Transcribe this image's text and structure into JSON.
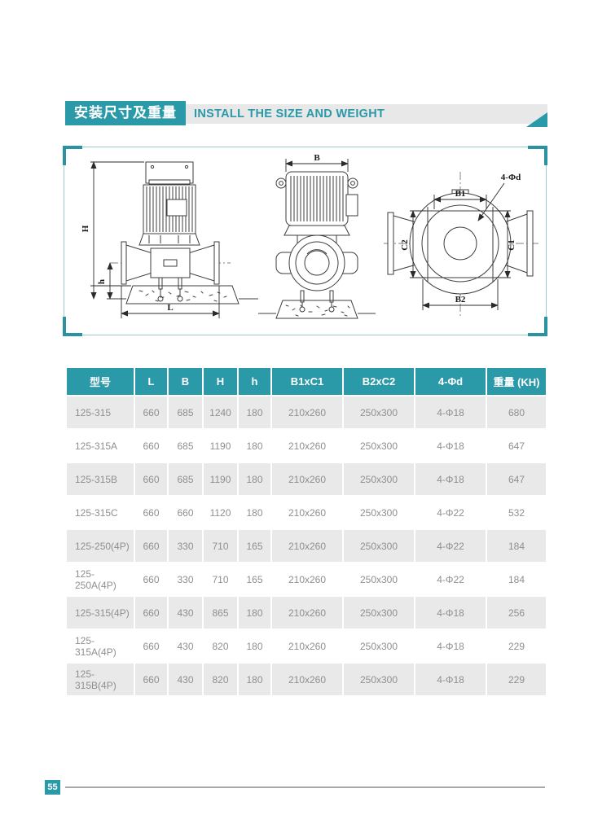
{
  "page": {
    "title_cn": "安装尺寸及重量",
    "title_en": "INSTALL THE SIZE AND WEIGHT",
    "page_number": "55"
  },
  "colors": {
    "teal": "#2a99a8",
    "bar_gray": "#e8e8e8",
    "row_gray": "#e9e9e9",
    "cell_text": "#8f8f8f"
  },
  "diagram": {
    "labels": {
      "H": "H",
      "h": "h",
      "L": "L",
      "B": "B",
      "B1": "B1",
      "B2": "B2",
      "C1": "C1",
      "C2": "C2",
      "bolt": "4-Φd"
    }
  },
  "table": {
    "headers": [
      "型号",
      "L",
      "B",
      "H",
      "h",
      "B1xC1",
      "B2xC2",
      "4-Φd",
      "重量 (KH)"
    ],
    "rows": [
      [
        "125-315",
        "660",
        "685",
        "1240",
        "180",
        "210x260",
        "250x300",
        "4-Φ18",
        "680"
      ],
      [
        "125-315A",
        "660",
        "685",
        "1190",
        "180",
        "210x260",
        "250x300",
        "4-Φ18",
        "647"
      ],
      [
        "125-315B",
        "660",
        "685",
        "1190",
        "180",
        "210x260",
        "250x300",
        "4-Φ18",
        "647"
      ],
      [
        "125-315C",
        "660",
        "660",
        "1120",
        "180",
        "210x260",
        "250x300",
        "4-Φ22",
        "532"
      ],
      [
        "125-250(4P)",
        "660",
        "330",
        "710",
        "165",
        "210x260",
        "250x300",
        "4-Φ22",
        "184"
      ],
      [
        "125-250A(4P)",
        "660",
        "330",
        "710",
        "165",
        "210x260",
        "250x300",
        "4-Φ22",
        "184"
      ],
      [
        "125-315(4P)",
        "660",
        "430",
        "865",
        "180",
        "210x260",
        "250x300",
        "4-Φ18",
        "256"
      ],
      [
        "125-315A(4P)",
        "660",
        "430",
        "820",
        "180",
        "210x260",
        "250x300",
        "4-Φ18",
        "229"
      ],
      [
        "125-315B(4P)",
        "660",
        "430",
        "820",
        "180",
        "210x260",
        "250x300",
        "4-Φ18",
        "229"
      ]
    ]
  }
}
